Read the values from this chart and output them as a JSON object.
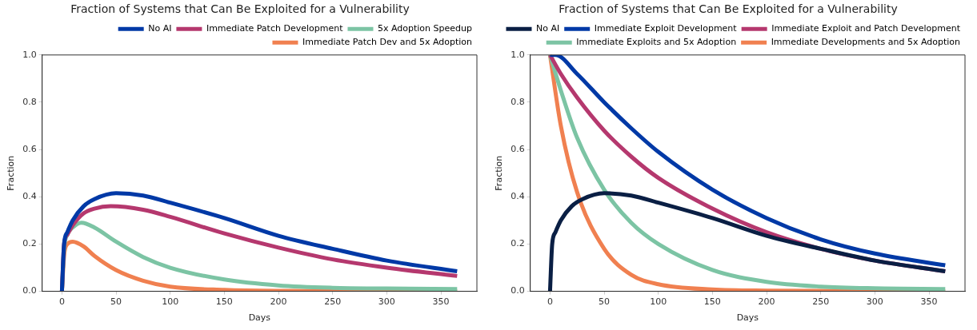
{
  "chart_data": [
    {
      "type": "line",
      "title": "Fraction of Systems that Can Be Exploited for a Vulnerability",
      "xlabel": "Days",
      "ylabel": "Fraction",
      "legend": "top right",
      "grid": false,
      "marker": "none",
      "line_style": "solid",
      "xlim": [
        -18.25,
        383.25
      ],
      "xticks": [
        0,
        50,
        100,
        150,
        200,
        250,
        300,
        350
      ],
      "ylim": [
        0,
        1
      ],
      "yticks": [
        {
          "value": 0,
          "label": "0.0"
        },
        {
          "value": 0.2,
          "label": "0.2"
        },
        {
          "value": 0.4,
          "label": "0.4"
        },
        {
          "value": 0.6,
          "label": "0.6"
        },
        {
          "value": 0.8,
          "label": "0.8"
        },
        {
          "value": 1,
          "label": "1.0"
        }
      ],
      "series": [
        {
          "name": "No AI",
          "color": "#0039a6",
          "x": [
            0,
            2,
            5,
            10,
            20,
            30,
            50,
            75,
            100,
            150,
            200,
            250,
            300,
            365
          ],
          "values": [
            0,
            0.2,
            0.25,
            0.3,
            0.36,
            0.39,
            0.415,
            0.405,
            0.375,
            0.31,
            0.235,
            0.18,
            0.13,
            0.085
          ]
        },
        {
          "name": "Immediate Patch Development",
          "color": "#b5386e",
          "x": [
            0,
            2,
            5,
            10,
            20,
            30,
            45,
            75,
            100,
            150,
            200,
            250,
            300,
            365
          ],
          "values": [
            0,
            0.2,
            0.24,
            0.28,
            0.33,
            0.35,
            0.36,
            0.345,
            0.315,
            0.245,
            0.185,
            0.135,
            0.1,
            0.065
          ]
        },
        {
          "name": "5x Adoption Speedup",
          "color": "#7cc4a4",
          "x": [
            0,
            2,
            5,
            10,
            18,
            30,
            50,
            75,
            100,
            150,
            200,
            250,
            300,
            365
          ],
          "values": [
            0,
            0.18,
            0.24,
            0.27,
            0.29,
            0.27,
            0.21,
            0.145,
            0.1,
            0.05,
            0.025,
            0.015,
            0.012,
            0.01
          ]
        },
        {
          "name": "Immediate Patch Dev and 5x Adoption",
          "color": "#f08050",
          "x": [
            0,
            2,
            5,
            10,
            20,
            30,
            50,
            75,
            100,
            150,
            200,
            365
          ],
          "values": [
            0,
            0.15,
            0.2,
            0.21,
            0.19,
            0.15,
            0.09,
            0.045,
            0.02,
            0.006,
            0.002,
            0
          ]
        }
      ]
    },
    {
      "type": "line",
      "title": "Fraction of Systems that Can Be Exploited for a Vulnerability",
      "xlabel": "Days",
      "ylabel": "Fraction",
      "legend": "top right",
      "grid": false,
      "marker": "none",
      "line_style": "solid",
      "xlim": [
        -18.25,
        383.25
      ],
      "xticks": [
        0,
        50,
        100,
        150,
        200,
        250,
        300,
        350
      ],
      "ylim": [
        0,
        1
      ],
      "yticks": [
        {
          "value": 0,
          "label": "0.0"
        },
        {
          "value": 0.2,
          "label": "0.2"
        },
        {
          "value": 0.4,
          "label": "0.4"
        },
        {
          "value": 0.6,
          "label": "0.6"
        },
        {
          "value": 0.8,
          "label": "0.8"
        },
        {
          "value": 1,
          "label": "1.0"
        }
      ],
      "series": [
        {
          "name": "No AI",
          "color": "#0a1f44",
          "x": [
            0,
            2,
            5,
            10,
            20,
            30,
            50,
            75,
            100,
            150,
            200,
            250,
            300,
            365
          ],
          "values": [
            0,
            0.2,
            0.25,
            0.3,
            0.36,
            0.39,
            0.415,
            0.405,
            0.375,
            0.31,
            0.235,
            0.18,
            0.13,
            0.085
          ]
        },
        {
          "name": "Immediate Exploit Development",
          "color": "#0039a6",
          "x": [
            0,
            5,
            25,
            50,
            75,
            100,
            150,
            200,
            250,
            300,
            365
          ],
          "values": [
            1,
            1,
            0.92,
            0.8,
            0.69,
            0.59,
            0.43,
            0.31,
            0.22,
            0.16,
            0.11
          ]
        },
        {
          "name": "Immediate Exploit and Patch Development",
          "color": "#b5386e",
          "x": [
            0,
            10,
            25,
            50,
            75,
            100,
            150,
            200,
            250,
            300,
            365
          ],
          "values": [
            1,
            0.92,
            0.82,
            0.68,
            0.57,
            0.48,
            0.35,
            0.25,
            0.18,
            0.13,
            0.085
          ]
        },
        {
          "name": "Immediate Exploits and 5x Adoption",
          "color": "#7cc4a4",
          "x": [
            0,
            10,
            25,
            50,
            75,
            100,
            150,
            200,
            250,
            300,
            365
          ],
          "values": [
            1,
            0.85,
            0.65,
            0.43,
            0.29,
            0.2,
            0.09,
            0.04,
            0.02,
            0.013,
            0.01
          ]
        },
        {
          "name": "Immediate Developments and 5x Adoption",
          "color": "#f08050",
          "x": [
            0,
            10,
            25,
            50,
            75,
            100,
            150,
            200,
            365
          ],
          "values": [
            1,
            0.7,
            0.42,
            0.18,
            0.07,
            0.03,
            0.008,
            0.003,
            0
          ]
        }
      ]
    }
  ]
}
